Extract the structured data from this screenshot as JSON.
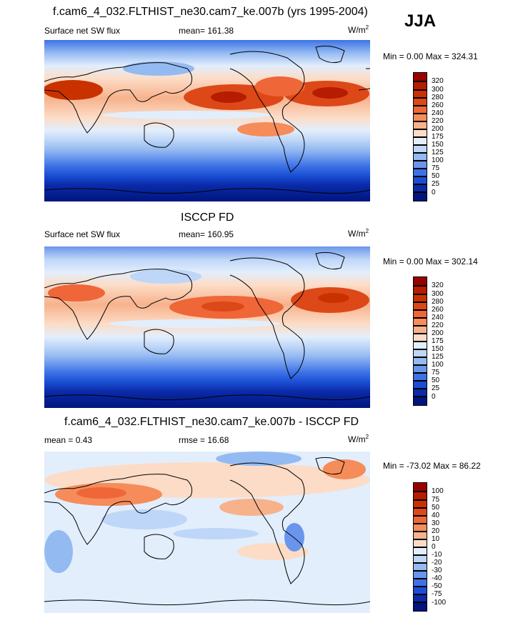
{
  "season": "JJA",
  "units": "W/m",
  "units_exp": "2",
  "panels": [
    {
      "title": "f.cam6_4_032.FLTHIST_ne30.cam7_ke.007b (yrs 1995-2004)",
      "left_label": "Surface net SW flux",
      "mid_label": "mean=  161.38",
      "minmax": "Min =    0.00 Max = 324.31",
      "ticks": [
        "320",
        "300",
        "280",
        "260",
        "240",
        "220",
        "200",
        "175",
        "150",
        "125",
        "100",
        "75",
        "50",
        "25",
        "0"
      ],
      "colors": [
        "#990000",
        "#b51c00",
        "#c93200",
        "#dd4818",
        "#ef6638",
        "#f58c5a",
        "#f7b28c",
        "#fcdcc6",
        "#e2eefc",
        "#bed6f7",
        "#94baf2",
        "#6996ec",
        "#3d72e6",
        "#1a4ed4",
        "#0a2aa8",
        "#00157d"
      ]
    },
    {
      "title": "ISCCP FD",
      "left_label": "Surface net SW flux",
      "mid_label": "mean=  160.95",
      "minmax": "Min =    0.00 Max = 302.14",
      "ticks": [
        "320",
        "300",
        "280",
        "260",
        "240",
        "220",
        "200",
        "175",
        "150",
        "125",
        "100",
        "75",
        "50",
        "25",
        "0"
      ],
      "colors": [
        "#990000",
        "#b51c00",
        "#c93200",
        "#dd4818",
        "#ef6638",
        "#f58c5a",
        "#f7b28c",
        "#fcdcc6",
        "#e2eefc",
        "#bed6f7",
        "#94baf2",
        "#6996ec",
        "#3d72e6",
        "#1a4ed4",
        "#0a2aa8",
        "#00157d"
      ]
    },
    {
      "title": "f.cam6_4_032.FLTHIST_ne30.cam7_ke.007b - ISCCP FD",
      "left_label": "mean =   0.43",
      "mid_label": "rmse =  16.68",
      "minmax": "Min = -73.02 Max =  86.22",
      "ticks": [
        "100",
        "75",
        "50",
        "40",
        "30",
        "20",
        "10",
        "0",
        "-10",
        "-20",
        "-30",
        "-40",
        "-50",
        "-75",
        "-100"
      ],
      "colors": [
        "#990000",
        "#b51c00",
        "#c93200",
        "#dd4818",
        "#ef6638",
        "#f58c5a",
        "#f7b28c",
        "#fcdcc6",
        "#e2eefc",
        "#bed6f7",
        "#94baf2",
        "#6996ec",
        "#3d72e6",
        "#1a4ed4",
        "#0a2aa8",
        "#00157d"
      ]
    }
  ]
}
